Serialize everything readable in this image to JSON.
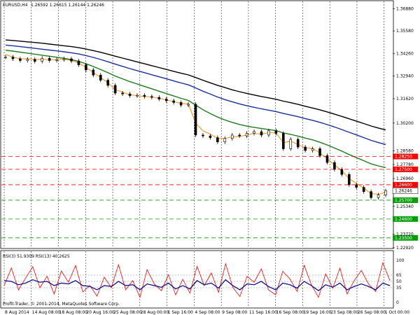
{
  "header": {
    "symbol": "EURUSD,H4",
    "ohlc": "1.26592 1.26615 1.26144 1.26246"
  },
  "rsi_header": "RSI(3) 51.9309  RSI(13) 40.2625",
  "copyright": "Profit-Trader, © 2001-2014, MetaQuotes Software Corp.",
  "colors": {
    "background": "#ffffff",
    "candles": "#000000",
    "ema_fast": "#ff8c00",
    "ma_green": "#1e7b1e",
    "ma_blue": "#1c2fa0",
    "ma_black": "#000000",
    "level_red": "#ff0000",
    "level_green": "#00a000",
    "rsi_fast": "#ff0000",
    "rsi_slow": "#00008b"
  },
  "chart_data": [
    {
      "type": "candlestick",
      "symbol": "EURUSD",
      "timeframe": "H4",
      "ylim": [
        1.2292,
        1.373
      ],
      "y_ticks": [
        "1.36880",
        "1.35580",
        "1.34260",
        "1.32940",
        "1.31620",
        "1.30200",
        "1.28580",
        "1.27780",
        "1.26960",
        "1.25340",
        "1.23720",
        "1.22920"
      ],
      "x_ticks": [
        "8 Aug 2014",
        "14 Aug 08:00",
        "18 Aug 08:00",
        "20 Aug 16:00",
        "25 Aug 08:00",
        "28 Aug 00:00",
        "1 Sep 16:00",
        "4 Sep 08:00",
        "9 Sep 08:00",
        "11 Sep 16:00",
        "16 Sep 08:00",
        "19 Sep 16:00",
        "23 Sep 08:00",
        "26 Sep 08:00",
        "1 Oct 00:00"
      ],
      "close_series": [
        1.3405,
        1.3395,
        1.3385,
        1.3392,
        1.338,
        1.3398,
        1.3385,
        1.339,
        1.3395,
        1.3382,
        1.336,
        1.333,
        1.33,
        1.327,
        1.324,
        1.3195,
        1.319,
        1.318,
        1.3182,
        1.3175,
        1.317,
        1.316,
        1.315,
        1.314,
        1.3125,
        1.313,
        1.295,
        1.2945,
        1.2935,
        1.291,
        1.293,
        1.295,
        1.2945,
        1.296,
        1.297,
        1.295,
        1.2975,
        1.296,
        1.287,
        1.2925,
        1.288,
        1.286,
        1.287,
        1.283,
        1.279,
        1.275,
        1.272,
        1.266,
        1.2645,
        1.262,
        1.2585,
        1.26,
        1.2625
      ],
      "series": [
        {
          "name": "",
          "color_key": "ema_fast",
          "values": [
            1.342,
            1.3405,
            1.3395,
            1.3395,
            1.339,
            1.3392,
            1.339,
            1.339,
            1.3392,
            1.3386,
            1.337,
            1.3345,
            1.3315,
            1.3285,
            1.3255,
            1.3215,
            1.32,
            1.3185,
            1.318,
            1.3175,
            1.3172,
            1.3165,
            1.3155,
            1.3145,
            1.3135,
            1.3132,
            1.302,
            1.2975,
            1.2955,
            1.293,
            1.293,
            1.294,
            1.2942,
            1.295,
            1.296,
            1.2955,
            1.2965,
            1.2962,
            1.2905,
            1.2915,
            1.2895,
            1.2875,
            1.2872,
            1.2845,
            1.2812,
            1.2775,
            1.2742,
            1.2695,
            1.2668,
            1.264,
            1.2608,
            1.2604,
            1.2615
          ]
        },
        {
          "name": "",
          "color_key": "ma_green",
          "values": [
            1.3445,
            1.344,
            1.3434,
            1.3428,
            1.3422,
            1.3416,
            1.341,
            1.3404,
            1.3398,
            1.339,
            1.338,
            1.3366,
            1.335,
            1.3332,
            1.3314,
            1.3294,
            1.3278,
            1.3262,
            1.3248,
            1.3234,
            1.322,
            1.3206,
            1.3192,
            1.3178,
            1.3164,
            1.3152,
            1.3125,
            1.3098,
            1.3075,
            1.3055,
            1.3038,
            1.3024,
            1.3012,
            1.3002,
            1.2995,
            1.2988,
            1.2982,
            1.2976,
            1.2962,
            1.2954,
            1.2944,
            1.2932,
            1.2922,
            1.2908,
            1.2892,
            1.2874,
            1.2856,
            1.2836,
            1.2818,
            1.28,
            1.2782,
            1.277,
            1.276
          ]
        },
        {
          "name": "",
          "color_key": "ma_blue",
          "values": [
            1.3475,
            1.3471,
            1.3466,
            1.3461,
            1.3456,
            1.3451,
            1.3446,
            1.3441,
            1.3436,
            1.343,
            1.3423,
            1.3414,
            1.3403,
            1.3391,
            1.3378,
            1.3364,
            1.3351,
            1.3338,
            1.3326,
            1.3314,
            1.3302,
            1.329,
            1.3278,
            1.3266,
            1.3254,
            1.3243,
            1.3225,
            1.3206,
            1.3189,
            1.3172,
            1.3157,
            1.3144,
            1.3132,
            1.3121,
            1.3112,
            1.3103,
            1.3095,
            1.3087,
            1.3076,
            1.3067,
            1.3057,
            1.3046,
            1.3036,
            1.3024,
            1.3011,
            1.2997,
            1.2982,
            1.2966,
            1.2951,
            1.2935,
            1.2919,
            1.2906,
            1.2895
          ]
        },
        {
          "name": "",
          "color_key": "ma_black",
          "values": [
            1.3505,
            1.3502,
            1.3498,
            1.3494,
            1.349,
            1.3486,
            1.3481,
            1.3476,
            1.3471,
            1.3466,
            1.346,
            1.3452,
            1.3443,
            1.3433,
            1.3422,
            1.341,
            1.3399,
            1.3388,
            1.3377,
            1.3366,
            1.3355,
            1.3344,
            1.3333,
            1.3322,
            1.3311,
            1.3301,
            1.3286,
            1.327,
            1.3255,
            1.324,
            1.3227,
            1.3214,
            1.3203,
            1.3193,
            1.3184,
            1.3175,
            1.3167,
            1.3159,
            1.3148,
            1.3139,
            1.3129,
            1.3118,
            1.3108,
            1.3097,
            1.3085,
            1.3072,
            1.3059,
            1.3045,
            1.3031,
            1.3017,
            1.3003,
            1.2991,
            1.298
          ]
        }
      ],
      "levels": [
        {
          "value": 1.2825,
          "label": "1.28250",
          "color_key": "level_red"
        },
        {
          "value": 1.275,
          "label": "1.27500",
          "color_key": "level_red"
        },
        {
          "value": 1.266,
          "label": "1.26600",
          "color_key": "level_red"
        },
        {
          "value": 1.257,
          "label": "1.25700",
          "color_key": "level_green"
        },
        {
          "value": 1.246,
          "label": "1.24600",
          "color_key": "level_green"
        },
        {
          "value": 1.235,
          "label": "1.23500",
          "color_key": "level_green"
        }
      ],
      "current_price": {
        "value": 1.26246,
        "label": "1.26246"
      }
    },
    {
      "type": "line",
      "title": "RSI(3) 51.9309  RSI(13) 40.2625",
      "ylim": [
        0,
        100
      ],
      "y_ticks": [
        "100",
        "65",
        "50",
        "35",
        "0"
      ],
      "series": [
        {
          "name": "RSI(3)",
          "color_key": "rsi_fast",
          "values": [
            40,
            82,
            30,
            58,
            85,
            35,
            62,
            20,
            75,
            48,
            88,
            25,
            40,
            15,
            60,
            35,
            90,
            30,
            52,
            12,
            78,
            44,
            28,
            66,
            18,
            55,
            22,
            86,
            40,
            70,
            24,
            92,
            36,
            14,
            62,
            48,
            80,
            30,
            18,
            74,
            56,
            26,
            88,
            42,
            12,
            68,
            34,
            82,
            20,
            52,
            76,
            44,
            26,
            94,
            52
          ]
        },
        {
          "name": "RSI(13)",
          "color_key": "rsi_slow",
          "values": [
            52,
            50,
            42,
            46,
            54,
            48,
            50,
            40,
            46,
            44,
            52,
            40,
            38,
            30,
            40,
            38,
            50,
            40,
            42,
            30,
            44,
            40,
            36,
            46,
            32,
            40,
            32,
            52,
            42,
            46,
            34,
            54,
            40,
            30,
            44,
            42,
            50,
            38,
            30,
            46,
            42,
            34,
            50,
            40,
            28,
            42,
            36,
            46,
            30,
            38,
            44,
            38,
            30,
            46,
            40
          ]
        }
      ]
    }
  ]
}
